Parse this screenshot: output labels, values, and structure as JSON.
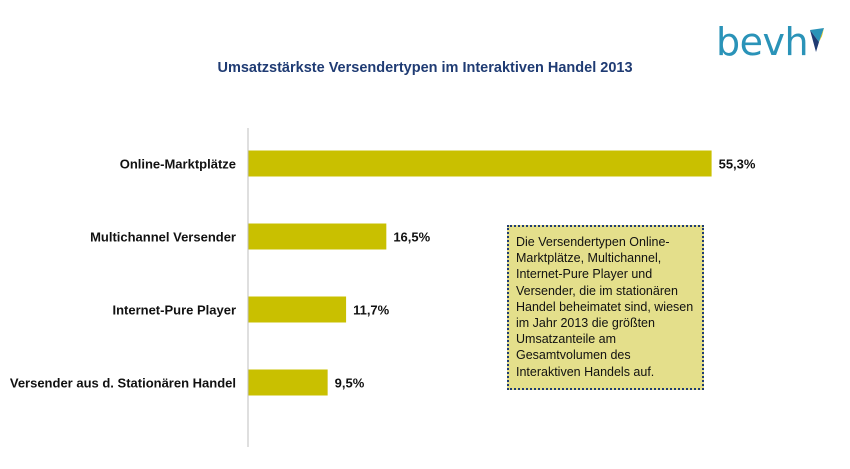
{
  "brand": {
    "name": "bevh",
    "text_color": "#2a93b8"
  },
  "chart_data": {
    "type": "bar",
    "orientation": "horizontal",
    "title": "Umsatzstärkste Versendertypen im Interaktiven Handel 2013",
    "categories": [
      "Online-Marktplätze",
      "Multichannel Versender",
      "Internet-Pure Player",
      "Versender aus d. Stationären Handel"
    ],
    "values": [
      55.3,
      16.5,
      11.7,
      9.5
    ],
    "value_labels": [
      "55,3%",
      "16,5%",
      "11,7%",
      "9,5%"
    ],
    "unit": "%",
    "xlim": [
      0,
      60
    ],
    "bar_color": "#c9c000",
    "grid": false,
    "legend": "none"
  },
  "callout": {
    "text": "Die Versendertypen Online-Marktplätze, Multichannel, Internet-Pure Player und Versender, die im stationären Handel beheimatet sind, wiesen im Jahr 2013 die größten Umsatzanteile am Gesamtvolumen des Interaktiven Handels auf."
  }
}
